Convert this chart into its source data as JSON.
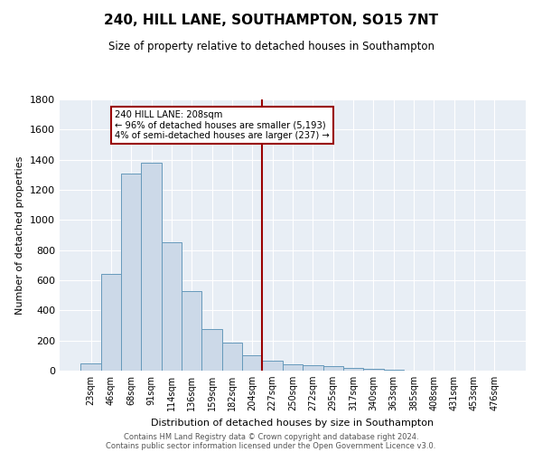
{
  "title": "240, HILL LANE, SOUTHAMPTON, SO15 7NT",
  "subtitle": "Size of property relative to detached houses in Southampton",
  "xlabel": "Distribution of detached houses by size in Southampton",
  "ylabel": "Number of detached properties",
  "bar_color": "#ccd9e8",
  "bar_edge_color": "#6699bb",
  "categories": [
    "23sqm",
    "46sqm",
    "68sqm",
    "91sqm",
    "114sqm",
    "136sqm",
    "159sqm",
    "182sqm",
    "204sqm",
    "227sqm",
    "250sqm",
    "272sqm",
    "295sqm",
    "317sqm",
    "340sqm",
    "363sqm",
    "385sqm",
    "408sqm",
    "431sqm",
    "453sqm",
    "476sqm"
  ],
  "values": [
    50,
    640,
    1310,
    1380,
    850,
    530,
    275,
    185,
    105,
    65,
    40,
    35,
    28,
    20,
    12,
    5,
    3,
    2,
    1,
    0,
    0
  ],
  "vline_index": 8.5,
  "vline_color": "#990000",
  "annotation_title": "240 HILL LANE: 208sqm",
  "annotation_line1": "← 96% of detached houses are smaller (5,193)",
  "annotation_line2": "4% of semi-detached houses are larger (237) →",
  "annotation_box_color": "#990000",
  "ylim": [
    0,
    1800
  ],
  "yticks": [
    0,
    200,
    400,
    600,
    800,
    1000,
    1200,
    1400,
    1600,
    1800
  ],
  "background_color": "#e8eef5",
  "footer1": "Contains HM Land Registry data © Crown copyright and database right 2024.",
  "footer2": "Contains public sector information licensed under the Open Government Licence v3.0."
}
